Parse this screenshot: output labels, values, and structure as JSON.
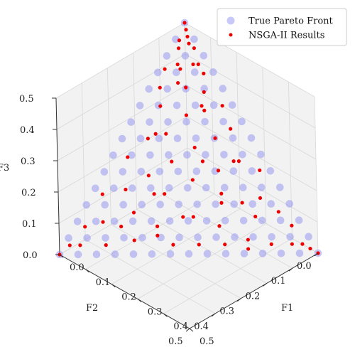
{
  "chart_data": {
    "type": "scatter",
    "projection": "3d",
    "title": "",
    "xlabel": "F1",
    "ylabel": "F2",
    "zlabel": "F3",
    "xlim": [
      0,
      0.5
    ],
    "ylim": [
      0,
      0.5
    ],
    "zlim": [
      0,
      0.5
    ],
    "xticks": [
      "0.0",
      "0.1",
      "0.2",
      "0.3",
      "0.4",
      "0.5"
    ],
    "yticks": [
      "0.0",
      "0.1",
      "0.2",
      "0.3",
      "0.4",
      "0.5"
    ],
    "zticks": [
      "0.0",
      "0.1",
      "0.2",
      "0.3",
      "0.4",
      "0.5"
    ],
    "grid": true,
    "legend_position": "top-right",
    "series": [
      {
        "name": "True Pareto Front",
        "color": "#7b7bf0",
        "marker": "large circle, translucent",
        "note": "simplex F1+F2+F3=0.5 sampled on a 0.5/14 grid",
        "grid_divisions": 14
      },
      {
        "name": "NSGA-II Results",
        "color": "#ee0000",
        "marker": "small circle",
        "points": [
          [
            0.0,
            0.0,
            0.5
          ],
          [
            0.5,
            0.0,
            0.0
          ],
          [
            0.0,
            0.5,
            0.0
          ],
          [
            0.01,
            0.005,
            0.485
          ],
          [
            0.02,
            0.01,
            0.47
          ],
          [
            0.008,
            0.03,
            0.462
          ],
          [
            0.03,
            0.015,
            0.455
          ],
          [
            0.015,
            0.04,
            0.445
          ],
          [
            0.045,
            0.01,
            0.445
          ],
          [
            0.03,
            0.06,
            0.41
          ],
          [
            0.06,
            0.03,
            0.41
          ],
          [
            0.05,
            0.08,
            0.37
          ],
          [
            0.09,
            0.02,
            0.39
          ],
          [
            0.07,
            0.07,
            0.36
          ],
          [
            0.11,
            0.04,
            0.35
          ],
          [
            0.02,
            0.12,
            0.36
          ],
          [
            0.04,
            0.14,
            0.32
          ],
          [
            0.13,
            0.06,
            0.31
          ],
          [
            0.16,
            0.02,
            0.32
          ],
          [
            0.1,
            0.1,
            0.3
          ],
          [
            0.08,
            0.16,
            0.26
          ],
          [
            0.18,
            0.07,
            0.25
          ],
          [
            0.15,
            0.12,
            0.23
          ],
          [
            0.05,
            0.2,
            0.25
          ],
          [
            0.2,
            0.03,
            0.27
          ],
          [
            0.12,
            0.18,
            0.2
          ],
          [
            0.22,
            0.1,
            0.18
          ],
          [
            0.25,
            0.05,
            0.2
          ],
          [
            0.03,
            0.26,
            0.21
          ],
          [
            0.09,
            0.24,
            0.17
          ],
          [
            0.18,
            0.16,
            0.16
          ],
          [
            0.26,
            0.13,
            0.11
          ],
          [
            0.3,
            0.02,
            0.18
          ],
          [
            0.14,
            0.23,
            0.13
          ],
          [
            0.06,
            0.3,
            0.14
          ],
          [
            0.3,
            0.09,
            0.11
          ],
          [
            0.22,
            0.2,
            0.08
          ],
          [
            0.33,
            0.05,
            0.12
          ],
          [
            0.1,
            0.31,
            0.09
          ],
          [
            0.35,
            0.12,
            0.03
          ],
          [
            0.02,
            0.35,
            0.13
          ],
          [
            0.17,
            0.29,
            0.04
          ],
          [
            0.38,
            0.03,
            0.09
          ],
          [
            0.26,
            0.22,
            0.02
          ],
          [
            0.05,
            0.38,
            0.07
          ],
          [
            0.4,
            0.08,
            0.02
          ],
          [
            0.13,
            0.34,
            0.03
          ],
          [
            0.31,
            0.17,
            0.02
          ],
          [
            0.42,
            0.02,
            0.06
          ],
          [
            0.02,
            0.42,
            0.06
          ],
          [
            0.21,
            0.27,
            0.02
          ],
          [
            0.08,
            0.4,
            0.02
          ],
          [
            0.44,
            0.04,
            0.02
          ],
          [
            0.36,
            0.13,
            0.01
          ],
          [
            0.03,
            0.45,
            0.02
          ],
          [
            0.46,
            0.02,
            0.02
          ],
          [
            0.01,
            0.47,
            0.02
          ],
          [
            0.48,
            0.01,
            0.01
          ],
          [
            0.18,
            0.12,
            0.2
          ],
          [
            0.24,
            0.06,
            0.2
          ],
          [
            0.06,
            0.18,
            0.26
          ],
          [
            0.12,
            0.06,
            0.32
          ],
          [
            0.2,
            0.22,
            0.08
          ],
          [
            0.28,
            0.16,
            0.06
          ],
          [
            0.16,
            0.28,
            0.06
          ],
          [
            0.34,
            0.08,
            0.08
          ],
          [
            0.09,
            0.35,
            0.06
          ],
          [
            0.25,
            0.12,
            0.13
          ],
          [
            0.12,
            0.25,
            0.13
          ],
          [
            0.04,
            0.06,
            0.4
          ],
          [
            0.07,
            0.02,
            0.41
          ],
          [
            0.01,
            0.09,
            0.4
          ]
        ]
      }
    ]
  }
}
